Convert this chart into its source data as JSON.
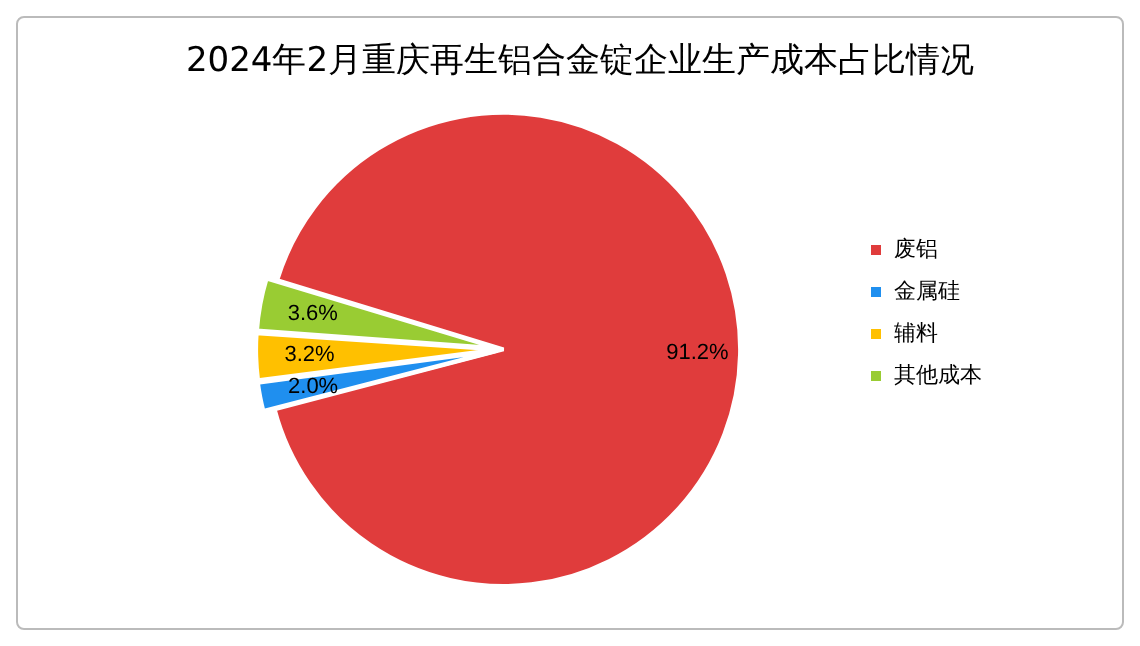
{
  "chart_data": {
    "type": "pie",
    "title": "2024年2月重庆再生铝合金锭企业生产成本占比情况",
    "categories": [
      "废铝",
      "金属硅",
      "辅料",
      "其他成本"
    ],
    "values": [
      91.2,
      2.0,
      3.2,
      3.6
    ],
    "colors": [
      "#e03c3c",
      "#1f8fef",
      "#ffc000",
      "#99cc33"
    ],
    "value_labels": [
      "91.2%",
      "2.0%",
      "3.2%",
      "3.6%"
    ],
    "legend": "right"
  }
}
